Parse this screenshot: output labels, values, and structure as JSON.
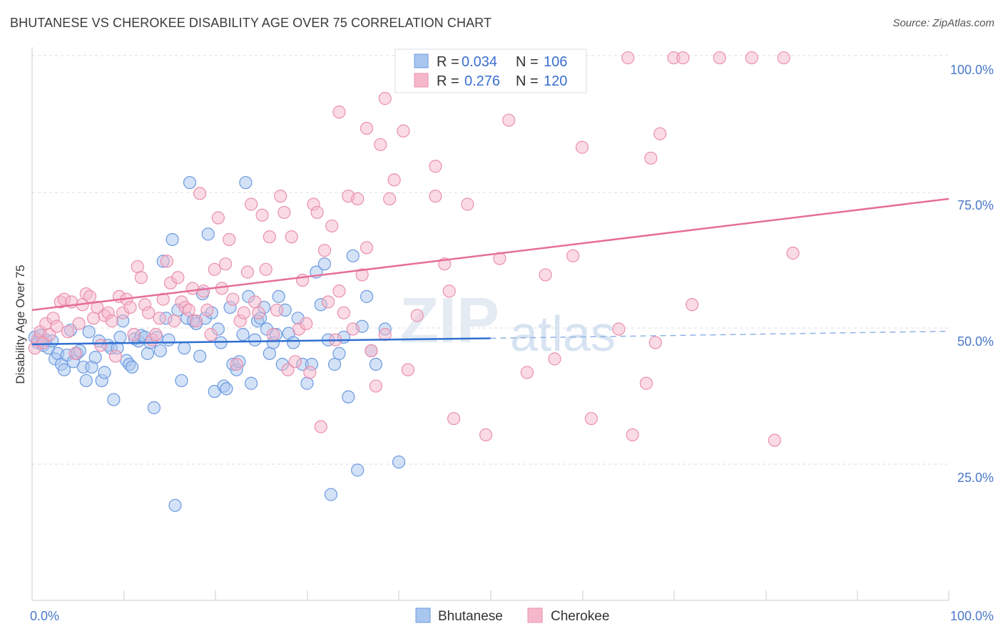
{
  "title": "BHUTANESE VS CHEROKEE DISABILITY AGE OVER 75 CORRELATION CHART",
  "source": "Source: ZipAtlas.com",
  "watermark": {
    "zip": "ZIP",
    "atlas": "atlas"
  },
  "colors": {
    "bhutanese_fill": "#a9c6ef",
    "bhutanese_stroke": "#6b9ae0",
    "bhutanese_line": "#2f6fd1",
    "cherokee_fill": "#f5b8cb",
    "cherokee_stroke": "#ea8fae",
    "cherokee_line": "#e56f97",
    "grid": "#d9dee6",
    "tick_label": "#4a78c8"
  },
  "legend": {
    "rows": [
      {
        "r_label": "R =",
        "r_value": "0.034",
        "n_label": "N =",
        "n_value": "106"
      },
      {
        "r_label": "R =",
        "r_value": "0.276",
        "n_label": "N =",
        "n_value": "120"
      }
    ]
  },
  "chart_data": {
    "type": "scatter",
    "title": "BHUTANESE VS CHEROKEE DISABILITY AGE OVER 75 CORRELATION CHART",
    "xlabel": "",
    "ylabel": "Disability Age Over 75",
    "xlim": [
      0,
      100
    ],
    "ylim": [
      0,
      105
    ],
    "x_tick_labels": [
      "0.0%",
      "100.0%"
    ],
    "y_ticks": [
      25,
      50,
      75,
      100
    ],
    "y_tick_labels": [
      "25.0%",
      "50.0%",
      "75.0%",
      "100.0%"
    ],
    "legend_labels": [
      "Bhutanese",
      "Cherokee"
    ],
    "series": [
      {
        "name": "Bhutanese",
        "r": 0.034,
        "n": 106,
        "trend": {
          "x0": 0,
          "y0": 47.2,
          "x1": 50,
          "y1": 48.3,
          "dash_to_x": 100,
          "dash_to_y": 49.6
        },
        "points": [
          [
            0.3,
            48.5
          ],
          [
            0.6,
            47.5
          ],
          [
            0.9,
            48.8
          ],
          [
            1.2,
            47.0
          ],
          [
            1.5,
            48.0
          ],
          [
            1.8,
            46.5
          ],
          [
            2.2,
            47.8
          ],
          [
            2.5,
            44.5
          ],
          [
            2.8,
            45.5
          ],
          [
            3.2,
            43.5
          ],
          [
            3.5,
            42.5
          ],
          [
            3.8,
            45.2
          ],
          [
            4.2,
            49.8
          ],
          [
            4.5,
            44.0
          ],
          [
            4.9,
            45.5
          ],
          [
            5.2,
            46.0
          ],
          [
            5.6,
            43.0
          ],
          [
            5.9,
            40.5
          ],
          [
            6.2,
            49.5
          ],
          [
            6.5,
            43.0
          ],
          [
            6.9,
            44.8
          ],
          [
            7.3,
            47.8
          ],
          [
            7.6,
            40.5
          ],
          [
            7.9,
            42.0
          ],
          [
            8.3,
            47.0
          ],
          [
            8.6,
            46.5
          ],
          [
            8.9,
            37.0
          ],
          [
            9.3,
            46.5
          ],
          [
            9.6,
            48.5
          ],
          [
            9.9,
            51.5
          ],
          [
            10.3,
            44.2
          ],
          [
            10.6,
            43.5
          ],
          [
            10.9,
            43.0
          ],
          [
            11.2,
            48.2
          ],
          [
            11.6,
            47.8
          ],
          [
            11.9,
            48.8
          ],
          [
            12.3,
            48.5
          ],
          [
            12.6,
            45.5
          ],
          [
            12.9,
            47.5
          ],
          [
            13.3,
            35.5
          ],
          [
            13.6,
            48.5
          ],
          [
            14.0,
            46.0
          ],
          [
            14.3,
            62.5
          ],
          [
            14.6,
            52.0
          ],
          [
            14.9,
            48.0
          ],
          [
            15.3,
            66.5
          ],
          [
            15.6,
            17.5
          ],
          [
            15.9,
            53.5
          ],
          [
            16.3,
            40.5
          ],
          [
            16.6,
            46.5
          ],
          [
            16.9,
            52.0
          ],
          [
            17.2,
            77.0
          ],
          [
            17.6,
            51.5
          ],
          [
            17.9,
            51.0
          ],
          [
            18.3,
            45.0
          ],
          [
            18.6,
            56.5
          ],
          [
            18.9,
            52.0
          ],
          [
            19.2,
            67.5
          ],
          [
            19.6,
            53.0
          ],
          [
            19.9,
            38.5
          ],
          [
            20.3,
            50.0
          ],
          [
            20.6,
            47.5
          ],
          [
            20.9,
            39.5
          ],
          [
            21.2,
            39.0
          ],
          [
            21.6,
            54.0
          ],
          [
            21.9,
            43.5
          ],
          [
            22.3,
            42.5
          ],
          [
            22.6,
            44.0
          ],
          [
            23.0,
            49.0
          ],
          [
            23.3,
            77.0
          ],
          [
            23.6,
            56.0
          ],
          [
            23.9,
            40.0
          ],
          [
            24.3,
            48.0
          ],
          [
            24.6,
            51.5
          ],
          [
            24.9,
            52.0
          ],
          [
            25.3,
            54.0
          ],
          [
            25.6,
            50.0
          ],
          [
            25.9,
            45.5
          ],
          [
            26.3,
            47.5
          ],
          [
            26.6,
            49.0
          ],
          [
            26.9,
            56.0
          ],
          [
            27.3,
            43.5
          ],
          [
            27.6,
            53.5
          ],
          [
            28.0,
            49.2
          ],
          [
            28.5,
            47.5
          ],
          [
            29.0,
            52.0
          ],
          [
            29.5,
            43.5
          ],
          [
            30.0,
            40.0
          ],
          [
            30.5,
            43.5
          ],
          [
            31.0,
            60.5
          ],
          [
            31.5,
            54.5
          ],
          [
            31.9,
            62.0
          ],
          [
            32.3,
            48.0
          ],
          [
            32.6,
            19.5
          ],
          [
            33.0,
            43.5
          ],
          [
            33.5,
            45.5
          ],
          [
            34.0,
            48.5
          ],
          [
            34.5,
            37.5
          ],
          [
            35.0,
            63.5
          ],
          [
            35.5,
            24.0
          ],
          [
            36.0,
            50.5
          ],
          [
            36.5,
            56.0
          ],
          [
            37.0,
            46.0
          ],
          [
            37.5,
            43.5
          ],
          [
            38.5,
            50.0
          ],
          [
            40.0,
            25.5
          ]
        ]
      },
      {
        "name": "Cherokee",
        "r": 0.276,
        "n": 120,
        "trend": {
          "x0": 0,
          "y0": 53.5,
          "x1": 100,
          "y1": 74.0
        },
        "points": [
          [
            0.3,
            46.5
          ],
          [
            0.6,
            48.0
          ],
          [
            0.9,
            49.5
          ],
          [
            1.2,
            47.5
          ],
          [
            1.5,
            51.0
          ],
          [
            1.9,
            49.0
          ],
          [
            2.3,
            52.0
          ],
          [
            2.7,
            50.5
          ],
          [
            3.1,
            55.0
          ],
          [
            3.5,
            55.5
          ],
          [
            3.9,
            49.5
          ],
          [
            4.3,
            55.0
          ],
          [
            4.7,
            45.5
          ],
          [
            5.1,
            51.0
          ],
          [
            5.5,
            54.5
          ],
          [
            5.9,
            56.5
          ],
          [
            6.3,
            56.0
          ],
          [
            6.7,
            52.0
          ],
          [
            7.1,
            54.0
          ],
          [
            7.5,
            47.0
          ],
          [
            7.9,
            52.5
          ],
          [
            8.3,
            53.0
          ],
          [
            8.7,
            51.5
          ],
          [
            9.1,
            45.0
          ],
          [
            9.5,
            56.0
          ],
          [
            9.9,
            53.0
          ],
          [
            10.3,
            55.5
          ],
          [
            10.7,
            54.0
          ],
          [
            11.1,
            49.0
          ],
          [
            11.5,
            61.5
          ],
          [
            11.9,
            59.5
          ],
          [
            12.3,
            54.5
          ],
          [
            12.7,
            53.0
          ],
          [
            13.1,
            48.0
          ],
          [
            13.5,
            49.0
          ],
          [
            13.9,
            52.0
          ],
          [
            14.3,
            55.5
          ],
          [
            14.7,
            62.5
          ],
          [
            15.1,
            58.5
          ],
          [
            15.5,
            51.5
          ],
          [
            15.9,
            59.5
          ],
          [
            16.3,
            55.0
          ],
          [
            16.7,
            54.0
          ],
          [
            17.1,
            53.5
          ],
          [
            17.5,
            57.5
          ],
          [
            17.9,
            51.5
          ],
          [
            18.3,
            75.0
          ],
          [
            18.7,
            57.0
          ],
          [
            19.1,
            53.5
          ],
          [
            19.5,
            49.0
          ],
          [
            19.9,
            61.0
          ],
          [
            20.3,
            70.5
          ],
          [
            20.7,
            57.5
          ],
          [
            21.1,
            62.0
          ],
          [
            21.5,
            66.5
          ],
          [
            21.9,
            55.5
          ],
          [
            22.3,
            43.5
          ],
          [
            22.7,
            51.5
          ],
          [
            23.1,
            53.0
          ],
          [
            23.5,
            60.5
          ],
          [
            23.9,
            73.0
          ],
          [
            24.3,
            55.0
          ],
          [
            24.7,
            53.0
          ],
          [
            25.1,
            71.0
          ],
          [
            25.5,
            61.0
          ],
          [
            25.9,
            67.0
          ],
          [
            26.3,
            49.0
          ],
          [
            26.7,
            53.5
          ],
          [
            27.1,
            74.5
          ],
          [
            27.5,
            71.5
          ],
          [
            27.9,
            42.5
          ],
          [
            28.3,
            67.0
          ],
          [
            28.7,
            44.0
          ],
          [
            29.1,
            50.0
          ],
          [
            29.5,
            59.0
          ],
          [
            29.9,
            51.0
          ],
          [
            30.3,
            42.0
          ],
          [
            30.7,
            73.0
          ],
          [
            31.1,
            71.5
          ],
          [
            31.5,
            32.0
          ],
          [
            31.9,
            64.5
          ],
          [
            32.3,
            55.0
          ],
          [
            32.7,
            69.0
          ],
          [
            33.1,
            48.0
          ],
          [
            33.5,
            57.0
          ],
          [
            34.0,
            53.0
          ],
          [
            34.5,
            74.5
          ],
          [
            35.0,
            50.0
          ],
          [
            35.5,
            74.0
          ],
          [
            36.0,
            60.0
          ],
          [
            36.5,
            65.0
          ],
          [
            37.0,
            46.0
          ],
          [
            37.5,
            39.5
          ],
          [
            38.0,
            84.0
          ],
          [
            38.5,
            49.0
          ],
          [
            39.0,
            74.0
          ],
          [
            39.5,
            77.5
          ],
          [
            40.5,
            86.5
          ],
          [
            41.0,
            42.5
          ],
          [
            42.0,
            52.5
          ],
          [
            44.0,
            74.5
          ],
          [
            45.0,
            62.0
          ],
          [
            45.5,
            57.0
          ],
          [
            46.0,
            33.5
          ],
          [
            47.5,
            73.0
          ],
          [
            49.5,
            30.5
          ],
          [
            51.0,
            63.0
          ],
          [
            52.0,
            88.5
          ],
          [
            54.0,
            42.0
          ],
          [
            56.0,
            60.0
          ],
          [
            57.0,
            44.5
          ],
          [
            59.0,
            63.5
          ],
          [
            61.0,
            33.5
          ],
          [
            64.0,
            50.0
          ],
          [
            65.5,
            30.5
          ],
          [
            67.0,
            40.0
          ],
          [
            68.0,
            47.5
          ],
          [
            72.0,
            54.5
          ],
          [
            81.0,
            29.5
          ],
          [
            83.0,
            64.0
          ]
        ],
        "top_points": [
          [
            33.5,
            90.0
          ],
          [
            36.5,
            87.0
          ],
          [
            38.5,
            92.5
          ],
          [
            44.0,
            80.0
          ],
          [
            60.0,
            83.5
          ],
          [
            67.5,
            81.5
          ],
          [
            68.5,
            86.0
          ],
          [
            65.0,
            100.0
          ],
          [
            70.0,
            100.0
          ],
          [
            71.0,
            100.0
          ],
          [
            75.0,
            100.0
          ],
          [
            78.5,
            100.0
          ],
          [
            82.0,
            100.0
          ]
        ]
      }
    ]
  }
}
